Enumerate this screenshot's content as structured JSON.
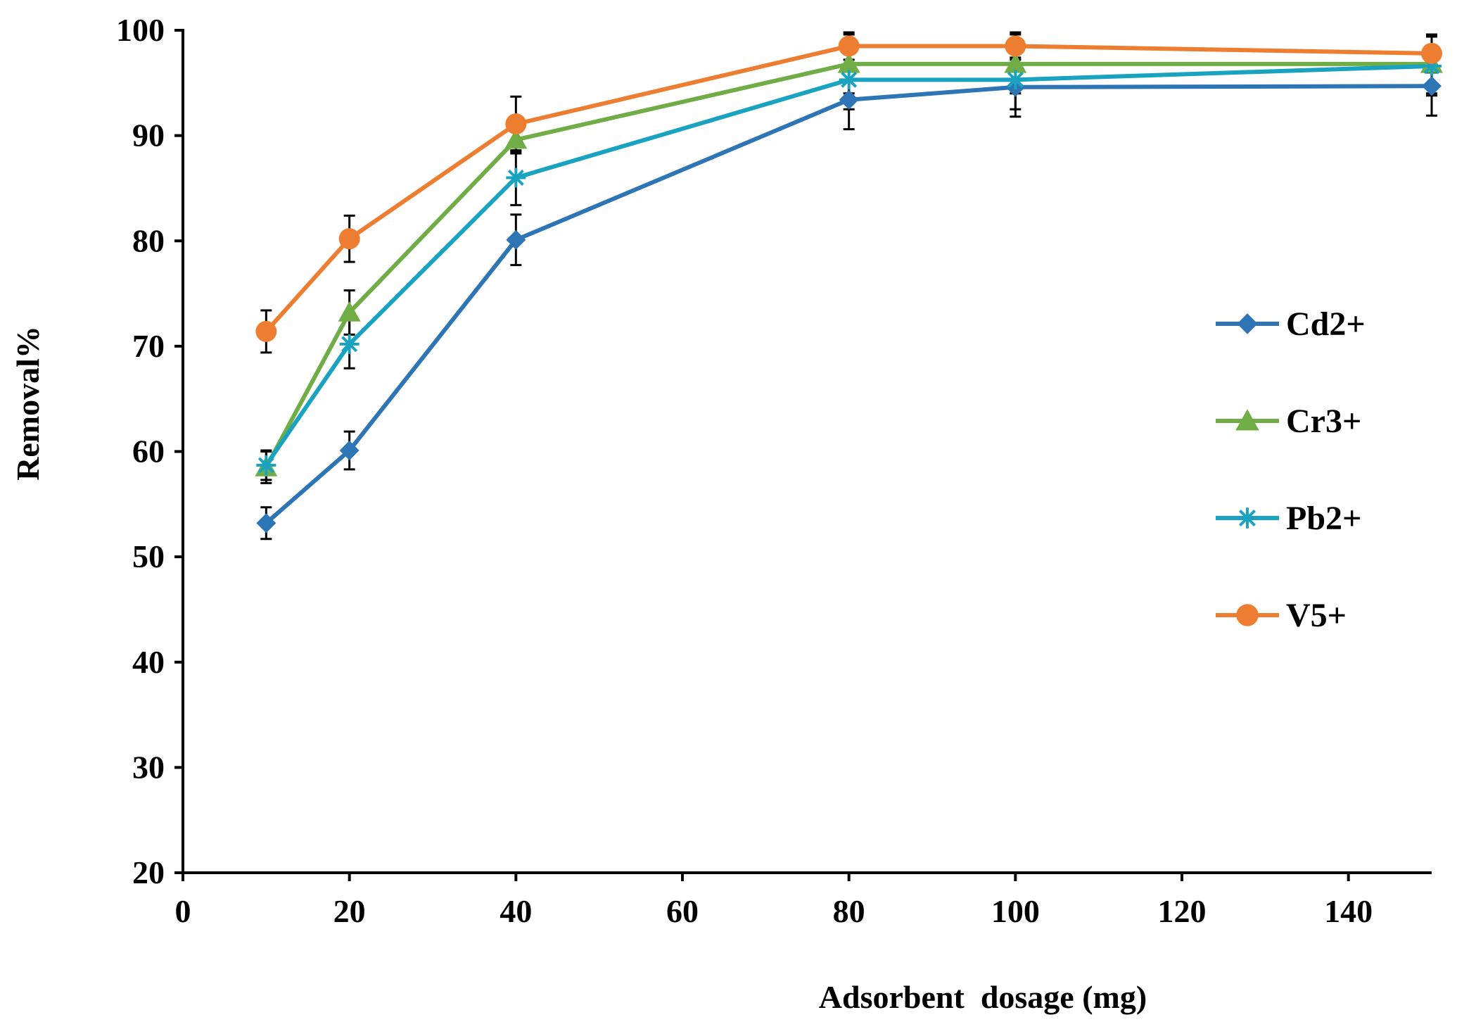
{
  "chart_data": {
    "type": "line",
    "title": "",
    "xlabel": "Adsorbent  dosage (mg)",
    "ylabel": "Removal%",
    "xlim": [
      0,
      150
    ],
    "ylim": [
      20,
      100
    ],
    "x_ticks": [
      0,
      20,
      40,
      60,
      80,
      100,
      120,
      140
    ],
    "y_ticks": [
      20,
      30,
      40,
      50,
      60,
      70,
      80,
      90,
      100
    ],
    "x_tick_labels": [
      "0",
      "20",
      "40",
      "60",
      "80",
      "100",
      "120",
      "140"
    ],
    "y_tick_labels": [
      "20",
      "30",
      "40",
      "50",
      "60",
      "70",
      "80",
      "90",
      "100"
    ],
    "grid": false,
    "legend_position": "right",
    "x": [
      10,
      20,
      40,
      80,
      100,
      150
    ],
    "series": [
      {
        "name": "Cd2+",
        "color": "#2E75B6",
        "marker": "diamond",
        "values": [
          53.2,
          60.1,
          80.1,
          93.4,
          94.6,
          94.7
        ],
        "errors": [
          1.5,
          1.8,
          2.4,
          2.8,
          2.8,
          2.8
        ]
      },
      {
        "name": "Cr3+",
        "color": "#70AD47",
        "marker": "triangle",
        "values": [
          58.5,
          73.2,
          89.6,
          96.8,
          96.8,
          96.8
        ],
        "errors": [
          1.5,
          2.1,
          1.3,
          2.8,
          2.8,
          2.8
        ]
      },
      {
        "name": "Pb2+",
        "color": "#1AA3C0",
        "marker": "star",
        "values": [
          58.7,
          70.2,
          86.0,
          95.3,
          95.3,
          96.6
        ],
        "errors": [
          1.4,
          2.3,
          2.6,
          2.8,
          2.8,
          2.8
        ]
      },
      {
        "name": "V5+",
        "color": "#ED7D31",
        "marker": "circle",
        "values": [
          71.4,
          80.2,
          91.1,
          98.5,
          98.5,
          97.8
        ],
        "errors": [
          2.0,
          2.2,
          2.6,
          1.3,
          1.3,
          1.8
        ]
      }
    ]
  }
}
